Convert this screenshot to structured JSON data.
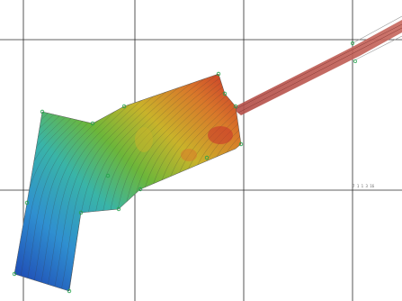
{
  "view": {
    "grid_color": "#2b2b2b",
    "background": "#ffffff"
  },
  "coordinate_label": "7 1 1 3 16",
  "colors": {
    "deep": "#1c3fb0",
    "mid_blue": "#2f8fd0",
    "teal": "#39b4a8",
    "green": "#6cb63a",
    "yellow": "#c9b32a",
    "orange": "#d9782a",
    "red": "#c8322a",
    "channel": "#b4504a",
    "contour": "#3a3a3a",
    "vertex_marker": "#22a34a"
  },
  "legend": {
    "type": "elevation-gradient",
    "low_color": "#1c3fb0",
    "high_color": "#c8322a"
  }
}
